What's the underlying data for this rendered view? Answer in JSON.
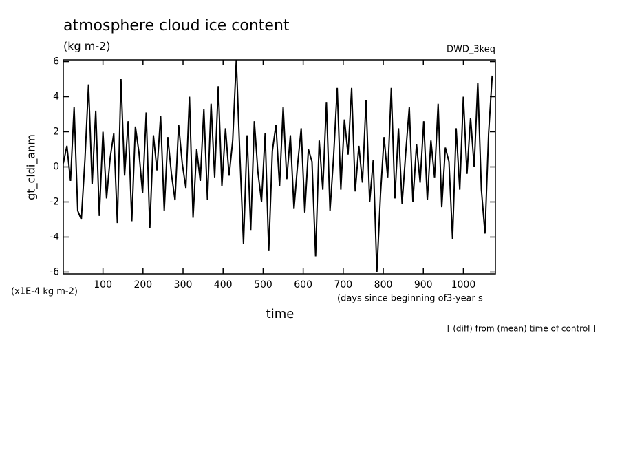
{
  "chart_data": {
    "type": "line",
    "title": "atmosphere cloud ice content",
    "subtitle": "(kg m-2)",
    "model_label": "DWD_3keq",
    "y_label": "gt_cldi_anm",
    "y_unit_label": "(x1E-4 kg m-2)",
    "x_unit_label": "(days since beginning of3-year s",
    "x_label": "time",
    "footnote": "[ (diff) from (mean) time of control ]",
    "xlim": [
      1,
      1080
    ],
    "ylim": [
      -6.1,
      6.1
    ],
    "xticks": [
      100,
      200,
      300,
      400,
      500,
      600,
      700,
      800,
      900,
      1000
    ],
    "yticks": [
      -6,
      -4,
      -2,
      0,
      2,
      4,
      6
    ],
    "color": "#000000",
    "x": [
      1,
      10,
      19,
      28,
      37,
      46,
      55,
      64,
      73,
      82,
      91,
      100,
      109,
      118,
      127,
      136,
      145,
      154,
      163,
      172,
      181,
      190,
      199,
      208,
      217,
      226,
      235,
      244,
      253,
      262,
      271,
      280,
      289,
      298,
      307,
      316,
      325,
      334,
      343,
      352,
      361,
      370,
      379,
      388,
      397,
      406,
      415,
      424,
      433,
      442,
      451,
      460,
      469,
      478,
      487,
      496,
      505,
      514,
      523,
      532,
      541,
      550,
      559,
      568,
      577,
      586,
      595,
      604,
      613,
      622,
      631,
      640,
      649,
      658,
      667,
      676,
      685,
      694,
      703,
      712,
      721,
      730,
      739,
      748,
      757,
      766,
      775,
      784,
      793,
      802,
      811,
      820,
      829,
      838,
      847,
      856,
      865,
      874,
      883,
      892,
      901,
      910,
      919,
      928,
      937,
      946,
      955,
      964,
      973,
      982,
      991,
      1000,
      1009,
      1018,
      1027,
      1036,
      1045,
      1054,
      1063,
      1072
    ],
    "values": [
      0.2,
      1.2,
      -0.8,
      3.4,
      -2.5,
      -3.0,
      0.4,
      4.7,
      -1.0,
      3.2,
      -2.8,
      2.0,
      -1.8,
      0.5,
      1.9,
      -3.2,
      5.0,
      -0.5,
      2.6,
      -3.1,
      2.3,
      0.8,
      -1.5,
      3.1,
      -3.5,
      1.8,
      -0.2,
      2.9,
      -2.5,
      1.7,
      -0.4,
      -1.9,
      2.4,
      0.2,
      -1.2,
      4.0,
      -2.9,
      1.0,
      -0.8,
      3.3,
      -1.9,
      3.6,
      -0.6,
      4.6,
      -1.1,
      2.2,
      -0.5,
      1.5,
      6.1,
      0.6,
      -4.4,
      1.8,
      -3.6,
      2.6,
      -0.3,
      -2.0,
      1.9,
      -4.8,
      0.9,
      2.4,
      -1.1,
      3.4,
      -0.7,
      1.8,
      -2.4,
      0.1,
      2.2,
      -2.6,
      1.0,
      0.3,
      -5.1,
      1.5,
      -1.3,
      3.7,
      -2.5,
      0.6,
      4.5,
      -1.3,
      2.7,
      0.7,
      4.5,
      -1.4,
      1.2,
      -0.9,
      3.8,
      -2.0,
      0.4,
      -6.0,
      -1.6,
      1.7,
      -0.6,
      4.5,
      -1.8,
      2.2,
      -2.1,
      0.8,
      3.4,
      -2.0,
      1.3,
      -0.9,
      2.6,
      -1.9,
      1.5,
      -0.6,
      3.6,
      -2.3,
      1.1,
      0.3,
      -4.1,
      2.2,
      -1.3,
      4.0,
      -0.4,
      2.8,
      0.0,
      4.8,
      -1.3,
      -3.8,
      1.9,
      5.2
    ]
  }
}
